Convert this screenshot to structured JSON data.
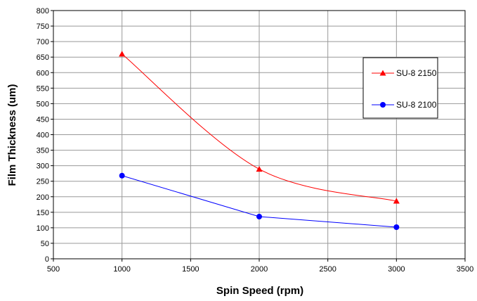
{
  "chart_data": {
    "type": "line",
    "title": "",
    "xlabel": "Spin Speed (rpm)",
    "ylabel": "Film Thickness (um)",
    "xlim": [
      500,
      3500
    ],
    "ylim": [
      0,
      800
    ],
    "xticks": [
      "500",
      "1000",
      "1500",
      "2000",
      "2500",
      "3000",
      "3500"
    ],
    "yticks": [
      "0",
      "50",
      "100",
      "150",
      "200",
      "250",
      "300",
      "350",
      "400",
      "450",
      "500",
      "550",
      "600",
      "650",
      "700",
      "750",
      "800"
    ],
    "grid": true,
    "legend_position": "right",
    "series": [
      {
        "name": "SU-8 2150",
        "color": "#ff0000",
        "marker": "triangle",
        "smooth": true,
        "x": [
          1000,
          2000,
          3000
        ],
        "y": [
          660,
          289,
          186
        ]
      },
      {
        "name": "SU-8 2100",
        "color": "#0000ff",
        "marker": "circle",
        "smooth": false,
        "x": [
          1000,
          2000,
          3000
        ],
        "y": [
          268,
          136,
          102
        ]
      }
    ]
  }
}
